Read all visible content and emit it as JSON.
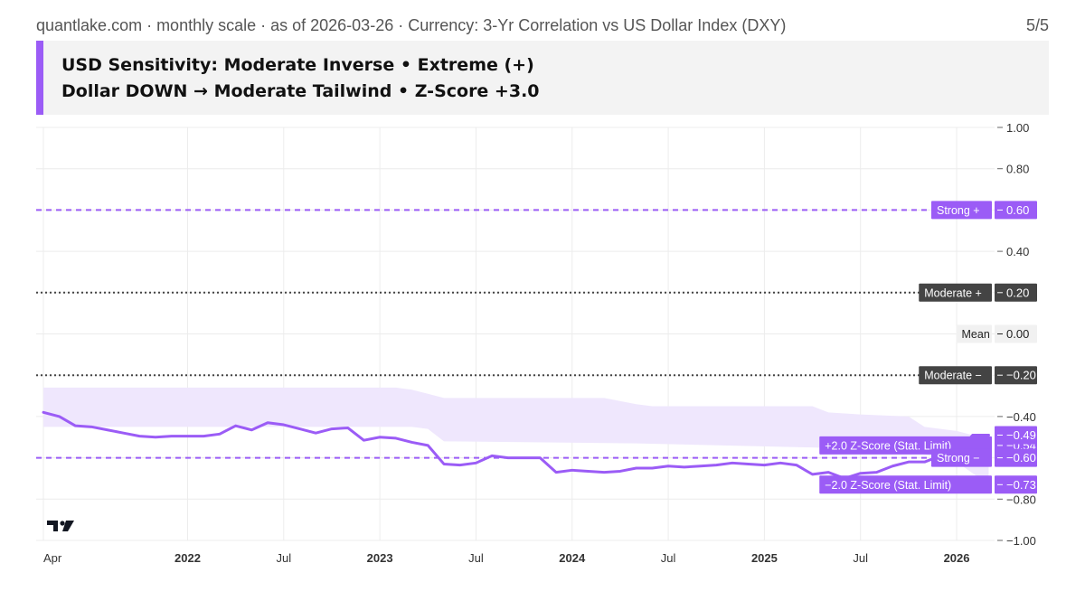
{
  "header": {
    "text": "quantlake.com · monthly scale · as of 2026-03-26 · Currency: 3-Yr Correlation vs US Dollar Index (DXY)",
    "page": "5/5"
  },
  "title": {
    "line1": "USD Sensitivity: Moderate Inverse • Extreme (+)",
    "line2": "Dollar DOWN → Moderate Tailwind • Z-Score +3.0"
  },
  "colors": {
    "series": "#9b5cf6",
    "band": "#efe7fd",
    "moderate_dark": "#444444",
    "grid": "#ececec",
    "axis_text": "#333333"
  },
  "logo": "tradingview-logo-icon",
  "chart_data": {
    "type": "line",
    "title": "",
    "xlabel": "",
    "ylabel": "",
    "ylim": [
      -1.0,
      1.0
    ],
    "grid": true,
    "x_ticks": [
      {
        "label": "Apr",
        "date": "2021-04",
        "bold": false
      },
      {
        "label": "2022",
        "date": "2022-01",
        "bold": true
      },
      {
        "label": "Jul",
        "date": "2022-07",
        "bold": false
      },
      {
        "label": "2023",
        "date": "2023-01",
        "bold": true
      },
      {
        "label": "Jul",
        "date": "2023-07",
        "bold": false
      },
      {
        "label": "2024",
        "date": "2024-01",
        "bold": true
      },
      {
        "label": "Jul",
        "date": "2024-07",
        "bold": false
      },
      {
        "label": "2025",
        "date": "2025-01",
        "bold": true
      },
      {
        "label": "Jul",
        "date": "2025-07",
        "bold": false
      },
      {
        "label": "2026",
        "date": "2026-01",
        "bold": true
      }
    ],
    "y_ticks": [
      {
        "label": "1.00",
        "value": 1.0
      },
      {
        "label": "0.80",
        "value": 0.8
      },
      {
        "label": "0.40",
        "value": 0.4
      },
      {
        "label": "−0.40",
        "value": -0.4
      },
      {
        "label": "−0.80",
        "value": -0.8
      },
      {
        "label": "−1.00",
        "value": -1.0
      }
    ],
    "series": [
      {
        "name": "",
        "points": [
          [
            "2021-04",
            -0.38
          ],
          [
            "2021-05",
            -0.4
          ],
          [
            "2021-06",
            -0.445
          ],
          [
            "2021-07",
            -0.45
          ],
          [
            "2021-08",
            -0.465
          ],
          [
            "2021-09",
            -0.48
          ],
          [
            "2021-10",
            -0.495
          ],
          [
            "2021-11",
            -0.5
          ],
          [
            "2021-12",
            -0.495
          ],
          [
            "2022-01",
            -0.495
          ],
          [
            "2022-02",
            -0.495
          ],
          [
            "2022-03",
            -0.485
          ],
          [
            "2022-04",
            -0.445
          ],
          [
            "2022-05",
            -0.465
          ],
          [
            "2022-06",
            -0.43
          ],
          [
            "2022-07",
            -0.44
          ],
          [
            "2022-08",
            -0.46
          ],
          [
            "2022-09",
            -0.48
          ],
          [
            "2022-10",
            -0.46
          ],
          [
            "2022-11",
            -0.455
          ],
          [
            "2022-12",
            -0.515
          ],
          [
            "2023-01",
            -0.5
          ],
          [
            "2023-02",
            -0.505
          ],
          [
            "2023-03",
            -0.525
          ],
          [
            "2023-04",
            -0.54
          ],
          [
            "2023-05",
            -0.63
          ],
          [
            "2023-06",
            -0.635
          ],
          [
            "2023-07",
            -0.625
          ],
          [
            "2023-08",
            -0.59
          ],
          [
            "2023-09",
            -0.6
          ],
          [
            "2023-10",
            -0.6
          ],
          [
            "2023-11",
            -0.6
          ],
          [
            "2023-12",
            -0.67
          ],
          [
            "2024-01",
            -0.66
          ],
          [
            "2024-02",
            -0.665
          ],
          [
            "2024-03",
            -0.67
          ],
          [
            "2024-04",
            -0.665
          ],
          [
            "2024-05",
            -0.65
          ],
          [
            "2024-06",
            -0.65
          ],
          [
            "2024-07",
            -0.64
          ],
          [
            "2024-08",
            -0.645
          ],
          [
            "2024-09",
            -0.64
          ],
          [
            "2024-10",
            -0.635
          ],
          [
            "2024-11",
            -0.625
          ],
          [
            "2024-12",
            -0.63
          ],
          [
            "2025-01",
            -0.635
          ],
          [
            "2025-02",
            -0.625
          ],
          [
            "2025-03",
            -0.635
          ],
          [
            "2025-04",
            -0.68
          ],
          [
            "2025-05",
            -0.67
          ],
          [
            "2025-06",
            -0.7
          ],
          [
            "2025-07",
            -0.675
          ],
          [
            "2025-08",
            -0.67
          ],
          [
            "2025-09",
            -0.64
          ],
          [
            "2025-10",
            -0.62
          ],
          [
            "2025-11",
            -0.62
          ],
          [
            "2025-12",
            -0.59
          ],
          [
            "2026-01",
            -0.58
          ],
          [
            "2026-02",
            -0.49
          ],
          [
            "2026-03",
            -0.49
          ]
        ]
      }
    ],
    "band": {
      "upper": [
        [
          "2021-04",
          -0.26
        ],
        [
          "2023-02",
          -0.26
        ],
        [
          "2023-03",
          -0.27
        ],
        [
          "2023-04",
          -0.29
        ],
        [
          "2023-05",
          -0.31
        ],
        [
          "2024-03",
          -0.31
        ],
        [
          "2024-05",
          -0.34
        ],
        [
          "2024-06",
          -0.35
        ],
        [
          "2025-04",
          -0.35
        ],
        [
          "2025-05",
          -0.38
        ],
        [
          "2025-07",
          -0.39
        ],
        [
          "2025-10",
          -0.4
        ],
        [
          "2025-11",
          -0.45
        ],
        [
          "2026-01",
          -0.47
        ],
        [
          "2026-02",
          -0.49
        ],
        [
          "2026-03",
          -0.49
        ]
      ],
      "lower": [
        [
          "2021-04",
          -0.45
        ],
        [
          "2023-03",
          -0.45
        ],
        [
          "2023-04",
          -0.46
        ],
        [
          "2023-05",
          -0.52
        ],
        [
          "2024-05",
          -0.53
        ],
        [
          "2025-04",
          -0.55
        ],
        [
          "2025-07",
          -0.56
        ],
        [
          "2025-10",
          -0.57
        ],
        [
          "2025-12",
          -0.6
        ],
        [
          "2026-01",
          -0.62
        ],
        [
          "2026-03",
          -0.73
        ]
      ]
    },
    "reference_lines": [
      {
        "label": "Strong +",
        "value_label": "0.60",
        "value": 0.6,
        "style": "dashed",
        "color": "#9b5cf6"
      },
      {
        "label": "Moderate +",
        "value_label": "0.20",
        "value": 0.2,
        "style": "dotted",
        "color": "#444444"
      },
      {
        "label": "Mean",
        "value_label": "0.00",
        "value": 0.0,
        "style": "none",
        "color": ""
      },
      {
        "label": "Moderate −",
        "value_label": "−0.20",
        "value": -0.2,
        "style": "dotted",
        "color": "#444444"
      },
      {
        "label": "+2.0 Z-Score (Stat. Limit)",
        "value_label": "−0.54",
        "value": -0.54,
        "style": "none",
        "color": "#9b5cf6"
      },
      {
        "label": "Strong −",
        "value_label": "−0.60",
        "value": -0.6,
        "style": "dashed",
        "color": "#9b5cf6"
      },
      {
        "label": "−2.0 Z-Score (Stat. Limit)",
        "value_label": "−0.73",
        "value": -0.73,
        "style": "none",
        "color": "#9b5cf6"
      }
    ],
    "last_value": {
      "label": "−0.49",
      "value": -0.49
    }
  }
}
